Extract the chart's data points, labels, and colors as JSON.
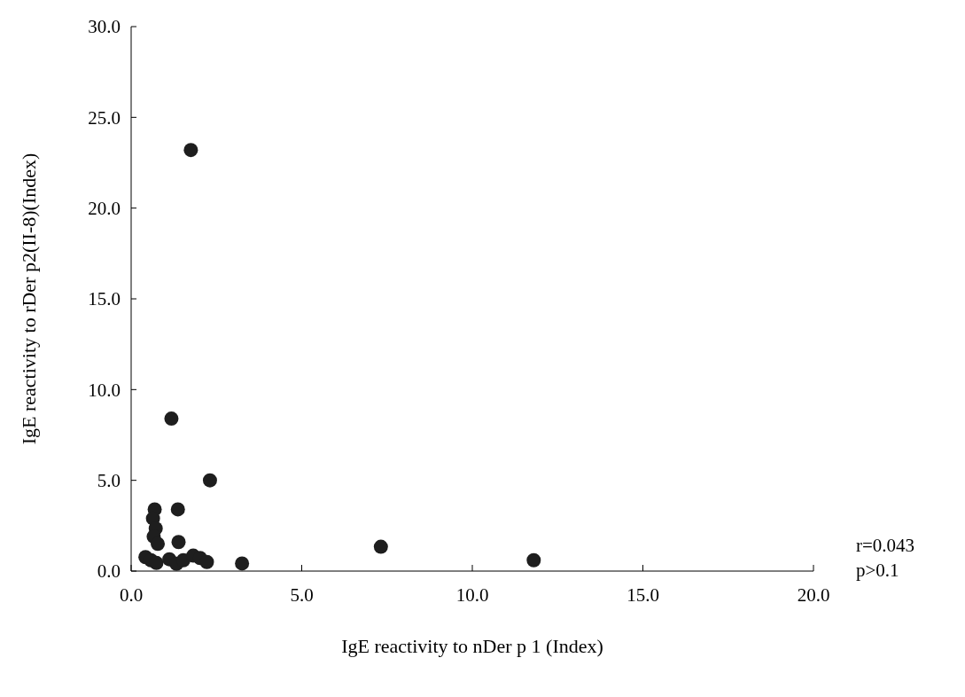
{
  "chart_data": {
    "type": "scatter",
    "xlabel": "IgE reactivity to nDer p 1 (Index)",
    "ylabel": "IgE reactivity to rDer p2(II-8)(Index)",
    "xlim": [
      0,
      20
    ],
    "ylim": [
      0,
      30
    ],
    "xticks": [
      {
        "value": 0,
        "label": "0.0"
      },
      {
        "value": 5,
        "label": "5.0"
      },
      {
        "value": 10,
        "label": "10.0"
      },
      {
        "value": 15,
        "label": "15.0"
      },
      {
        "value": 20,
        "label": "20.0"
      }
    ],
    "yticks": [
      {
        "value": 0,
        "label": "0.0"
      },
      {
        "value": 5,
        "label": "5.0"
      },
      {
        "value": 10,
        "label": "10.0"
      },
      {
        "value": 15,
        "label": "15.0"
      },
      {
        "value": 20,
        "label": "20.0"
      },
      {
        "value": 25,
        "label": "25.0"
      },
      {
        "value": 30,
        "label": "30.0"
      }
    ],
    "series": [
      {
        "color": "#1e1e1e",
        "x": [
          1.75,
          1.18,
          2.31,
          1.37,
          1.39,
          0.69,
          0.64,
          0.72,
          0.66,
          0.78,
          0.42,
          0.58,
          0.74,
          1.12,
          1.33,
          1.53,
          1.82,
          2.02,
          2.22,
          3.25,
          7.32,
          11.8
        ],
        "values": [
          23.2,
          8.4,
          5.0,
          3.4,
          1.6,
          3.4,
          2.9,
          2.35,
          1.9,
          1.5,
          0.77,
          0.6,
          0.45,
          0.65,
          0.4,
          0.6,
          0.85,
          0.72,
          0.5,
          0.42,
          1.34,
          0.6
        ]
      }
    ],
    "marker": "circle",
    "grid": false,
    "annotations": [
      "r=0.043",
      "p>0.1"
    ]
  }
}
